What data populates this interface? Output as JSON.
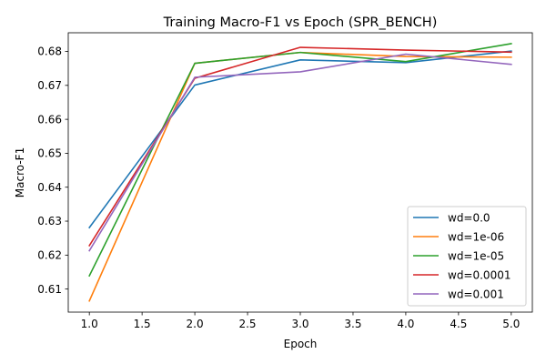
{
  "chart_data": {
    "type": "line",
    "title": "Training Macro-F1 vs Epoch (SPR_BENCH)",
    "xlabel": "Epoch",
    "ylabel": "Macro-F1",
    "xlim": [
      0.8,
      5.2
    ],
    "ylim": [
      0.6032,
      0.6855
    ],
    "xticks": [
      1.0,
      1.5,
      2.0,
      2.5,
      3.0,
      3.5,
      4.0,
      4.5,
      5.0
    ],
    "xtick_labels": [
      "1.0",
      "1.5",
      "2.0",
      "2.5",
      "3.0",
      "3.5",
      "4.0",
      "4.5",
      "5.0"
    ],
    "yticks": [
      0.61,
      0.62,
      0.63,
      0.64,
      0.65,
      0.66,
      0.67,
      0.68
    ],
    "ytick_labels": [
      "0.61",
      "0.62",
      "0.63",
      "0.64",
      "0.65",
      "0.66",
      "0.67",
      "0.68"
    ],
    "grid": false,
    "legend_position": "lower-right",
    "x": [
      1,
      2,
      3,
      4,
      5
    ],
    "series": [
      {
        "name": "wd=0.0",
        "color": "#1f77b4",
        "values": [
          0.6281,
          0.6701,
          0.6775,
          0.6767,
          0.6801
        ]
      },
      {
        "name": "wd=1e-06",
        "color": "#ff7f0e",
        "values": [
          0.6065,
          0.6765,
          0.6797,
          0.6785,
          0.6783
        ]
      },
      {
        "name": "wd=1e-05",
        "color": "#2ca02c",
        "values": [
          0.6139,
          0.6765,
          0.6797,
          0.677,
          0.6823
        ]
      },
      {
        "name": "wd=0.0001",
        "color": "#d62728",
        "values": [
          0.6228,
          0.6721,
          0.6812,
          0.6804,
          0.6798
        ]
      },
      {
        "name": "wd=0.001",
        "color": "#9467bd",
        "values": [
          0.6213,
          0.6724,
          0.674,
          0.6792,
          0.6762
        ]
      }
    ]
  }
}
